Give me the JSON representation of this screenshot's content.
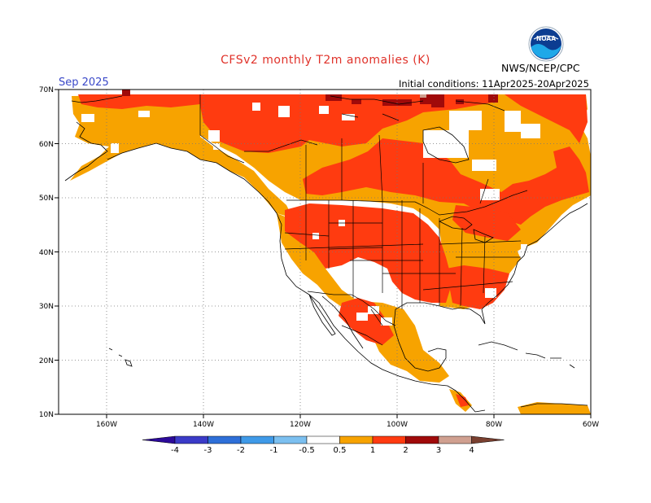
{
  "title": "CFSv2 monthly T2m anomalies (K)",
  "valid_month": "Sep 2025",
  "initial_conditions": "Initial conditions: 11Apr2025-20Apr2025",
  "organization": "NWS/NCEP/CPC",
  "logo_text": "NOAA",
  "lat_labels": [
    "70N",
    "60N",
    "50N",
    "40N",
    "30N",
    "20N",
    "10N"
  ],
  "lon_labels": [
    "160W",
    "140W",
    "120W",
    "100W",
    "80W",
    "60W"
  ],
  "legend": {
    "tick_labels": [
      "-4",
      "-3",
      "-2",
      "-1",
      "-0.5",
      "0.5",
      "1",
      "2",
      "3",
      "4"
    ],
    "colors": [
      "#2c0a9a",
      "#3b3bc8",
      "#2e6fd8",
      "#3f9ae8",
      "#7cc0f0",
      "#ffffff",
      "#f7a300",
      "#ff3b10",
      "#a00a0a",
      "#d0a090",
      "#7a4030"
    ]
  },
  "colors": {
    "anom_0_5_to_1": "#f7a300",
    "anom_1_to_2": "#ff3b10",
    "anom_2_to_3": "#a00a0a",
    "anom_3_to_4": "#d0a090"
  }
}
